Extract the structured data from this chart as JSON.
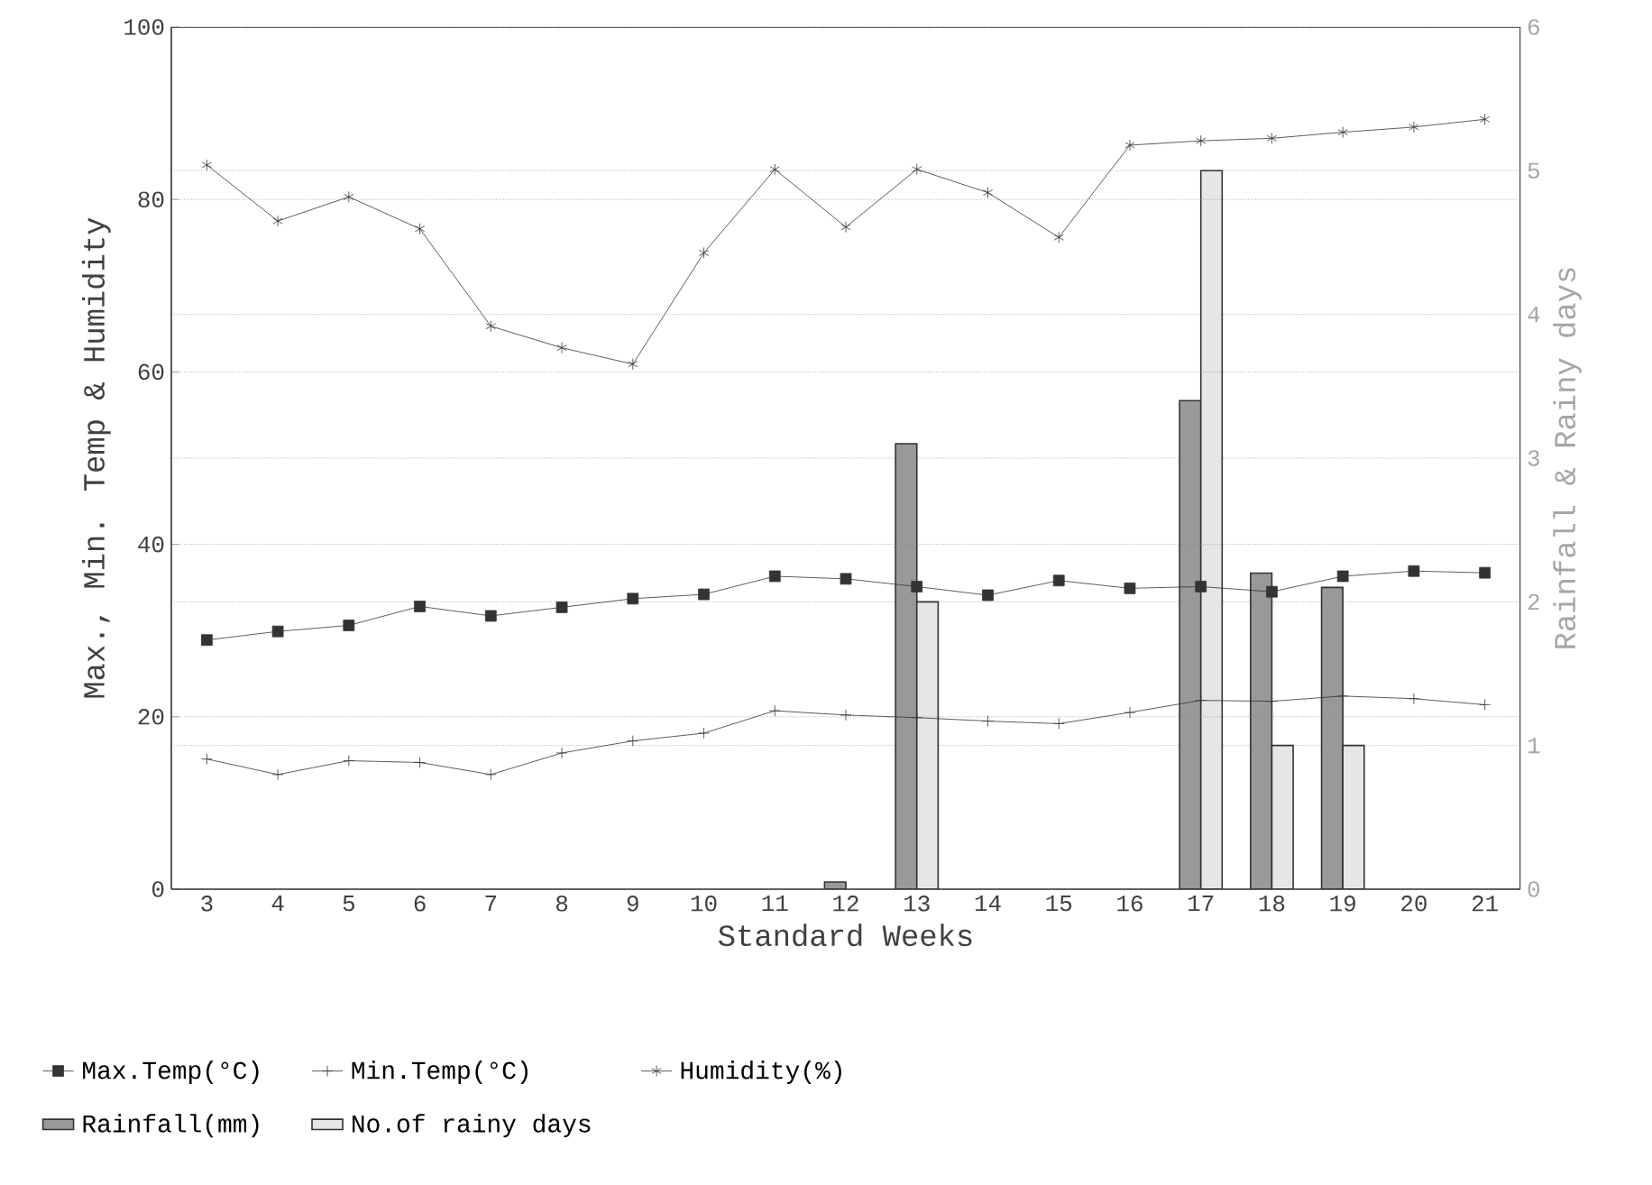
{
  "chart_data": {
    "type": "line",
    "xlabel": "Standard Weeks",
    "ylabel": "Max., Min. Temp & Humidity",
    "y2label": "Rainfall & Rainy days",
    "categories": [
      "3",
      "4",
      "5",
      "6",
      "7",
      "8",
      "9",
      "10",
      "11",
      "12",
      "13",
      "14",
      "15",
      "16",
      "17",
      "18",
      "19",
      "20",
      "21"
    ],
    "series": [
      {
        "name": "Max.Temp(°C)",
        "marker": "square",
        "color": "#333333",
        "values": [
          28.9,
          29.9,
          30.6,
          32.8,
          31.7,
          32.7,
          33.7,
          34.2,
          36.3,
          36.0,
          35.1,
          34.1,
          35.8,
          34.9,
          35.1,
          34.5,
          36.3,
          36.9,
          36.7
        ]
      },
      {
        "name": "Min.Temp(°C)",
        "marker": "cross",
        "color": "#333333",
        "values": [
          15.1,
          13.3,
          14.9,
          14.7,
          13.3,
          15.8,
          17.2,
          18.1,
          20.7,
          20.2,
          19.9,
          19.5,
          19.2,
          20.5,
          21.9,
          21.8,
          22.4,
          22.1,
          21.4
        ]
      },
      {
        "name": "Humidity(%)",
        "marker": "cross",
        "color": "#333333",
        "values": [
          84.0,
          77.5,
          80.3,
          76.6,
          65.3,
          62.8,
          60.9,
          73.8,
          83.5,
          76.8,
          83.5,
          80.8,
          75.6,
          86.3,
          86.8,
          87.1,
          87.8,
          88.4,
          89.3
        ]
      },
      {
        "name": "Rainfall(mm)",
        "type": "bar",
        "axis": "y2",
        "color": "#999999",
        "values": [
          null,
          null,
          null,
          null,
          null,
          null,
          null,
          null,
          null,
          0.05,
          3.1,
          null,
          null,
          null,
          3.4,
          2.2,
          2.1,
          null,
          null
        ]
      },
      {
        "name": "No.of rainy days",
        "type": "bar",
        "axis": "y2",
        "color": "#e6e6e6",
        "values": [
          null,
          null,
          null,
          null,
          null,
          null,
          null,
          null,
          null,
          null,
          2,
          null,
          null,
          null,
          5,
          1,
          1,
          null,
          null
        ]
      }
    ],
    "ylim": [
      0,
      100
    ],
    "yticks": [
      0,
      20,
      40,
      60,
      80,
      100
    ],
    "y2lim": [
      0,
      6
    ],
    "y2ticks": [
      0,
      1,
      2,
      3,
      4,
      5,
      6
    ],
    "grid": "y",
    "legend": "bottom"
  }
}
